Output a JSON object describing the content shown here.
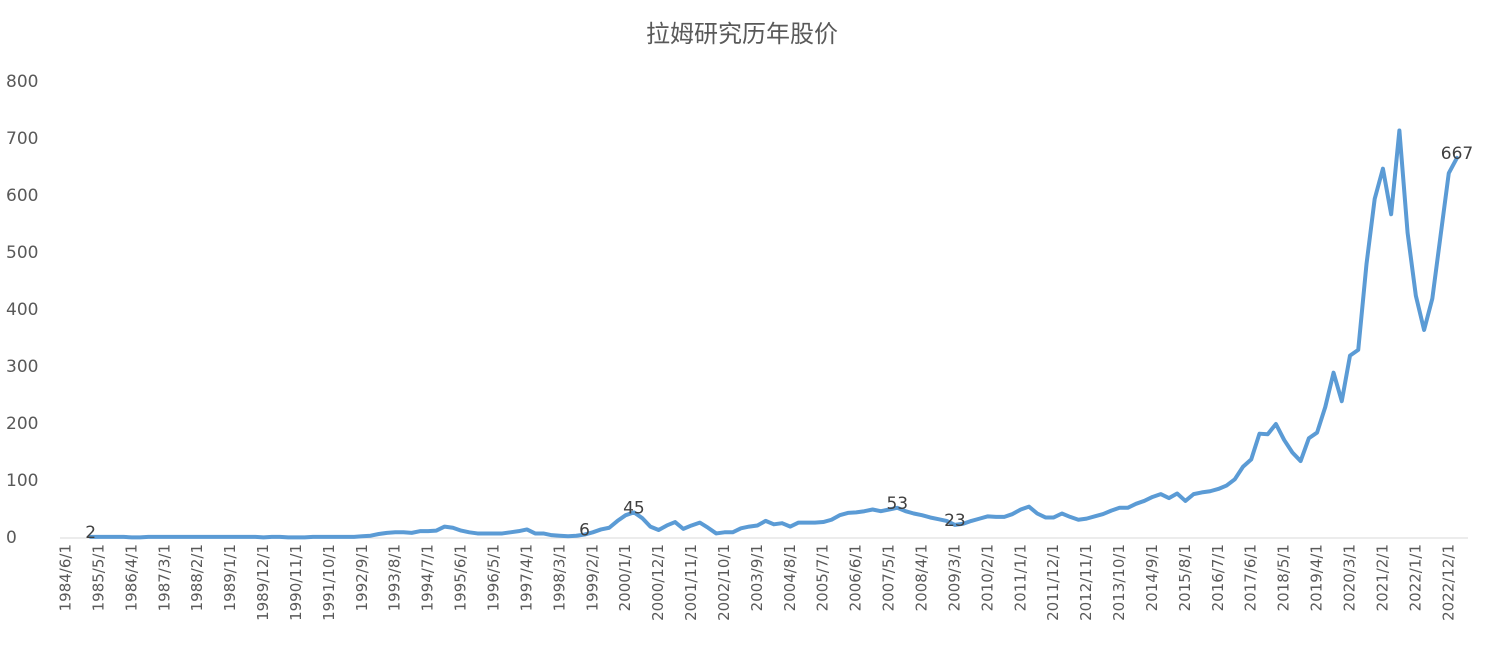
{
  "chart_data": {
    "type": "line",
    "title": "拉姆研究历年股价",
    "categories": [
      "1984/6/1",
      null,
      null,
      null,
      "1985/5/1",
      null,
      null,
      null,
      "1986/4/1",
      null,
      null,
      null,
      "1987/3/1",
      null,
      null,
      null,
      "1988/2/1",
      null,
      null,
      null,
      "1989/1/1",
      null,
      null,
      null,
      "1989/12/1",
      null,
      null,
      null,
      "1990/11/1",
      null,
      null,
      null,
      "1991/10/1",
      null,
      null,
      null,
      "1992/9/1",
      null,
      null,
      null,
      "1993/8/1",
      null,
      null,
      null,
      "1994/7/1",
      null,
      null,
      null,
      "1995/6/1",
      null,
      null,
      null,
      "1996/5/1",
      null,
      null,
      null,
      "1997/4/1",
      null,
      null,
      null,
      "1998/3/1",
      null,
      null,
      null,
      "1999/2/1",
      null,
      null,
      null,
      "2000/1/1",
      null,
      null,
      null,
      "2000/12/1",
      null,
      null,
      null,
      "2001/11/1",
      null,
      null,
      null,
      "2002/10/1",
      null,
      null,
      null,
      "2003/9/1",
      null,
      null,
      null,
      "2004/8/1",
      null,
      null,
      null,
      "2005/7/1",
      null,
      null,
      null,
      "2006/6/1",
      null,
      null,
      null,
      "2007/5/1",
      null,
      null,
      null,
      "2008/4/1",
      null,
      null,
      null,
      "2009/3/1",
      null,
      null,
      null,
      "2010/2/1",
      null,
      null,
      null,
      "2011/1/1",
      null,
      null,
      null,
      "2011/12/1",
      null,
      null,
      null,
      "2012/11/1",
      null,
      null,
      null,
      "2013/10/1",
      null,
      null,
      null,
      "2014/9/1",
      null,
      null,
      null,
      "2015/8/1",
      null,
      null,
      null,
      "2016/7/1",
      null,
      null,
      null,
      "2017/6/1",
      null,
      null,
      null,
      "2018/5/1",
      null,
      null,
      null,
      "2019/4/1",
      null,
      null,
      null,
      "2020/3/1",
      null,
      null,
      null,
      "2021/2/1",
      null,
      null,
      null,
      "2022/1/1",
      null,
      null,
      null,
      "2022/12/1",
      null
    ],
    "series": [
      {
        "color": "#5b9bd5",
        "values": [
          null,
          null,
          null,
          2,
          2,
          2,
          2,
          2,
          1,
          1,
          2,
          2,
          2,
          2,
          2,
          2,
          2,
          2,
          2,
          2,
          2,
          2,
          2,
          2,
          1,
          2,
          2,
          1,
          1,
          1,
          2,
          2,
          2,
          2,
          2,
          2,
          3,
          4,
          7,
          9,
          10,
          10,
          9,
          12,
          12,
          13,
          20,
          18,
          13,
          10,
          8,
          8,
          8,
          8,
          10,
          12,
          15,
          8,
          8,
          5,
          4,
          3,
          4,
          6,
          10,
          15,
          18,
          30,
          40,
          45,
          35,
          20,
          14,
          22,
          28,
          16,
          22,
          27,
          18,
          8,
          10,
          10,
          17,
          20,
          22,
          30,
          24,
          26,
          20,
          27,
          27,
          27,
          28,
          32,
          40,
          44,
          45,
          47,
          50,
          47,
          50,
          53,
          47,
          43,
          40,
          36,
          33,
          30,
          23,
          25,
          30,
          34,
          38,
          37,
          37,
          42,
          50,
          55,
          43,
          36,
          36,
          43,
          37,
          32,
          34,
          38,
          42,
          48,
          53,
          53,
          60,
          65,
          72,
          77,
          70,
          78,
          65,
          77,
          80,
          82,
          86,
          92,
          103,
          125,
          138,
          183,
          182,
          200,
          172,
          150,
          135,
          175,
          185,
          230,
          290,
          240,
          320,
          330,
          480,
          595,
          648,
          568,
          715,
          535,
          425,
          365,
          420,
          530,
          640,
          667
        ]
      }
    ],
    "data_labels": [
      3,
      63,
      69,
      101,
      108,
      169
    ],
    "ylim": [
      0,
      800
    ],
    "yticks": [
      0,
      100,
      200,
      300,
      400,
      500,
      600,
      700,
      800
    ],
    "grid": false
  }
}
